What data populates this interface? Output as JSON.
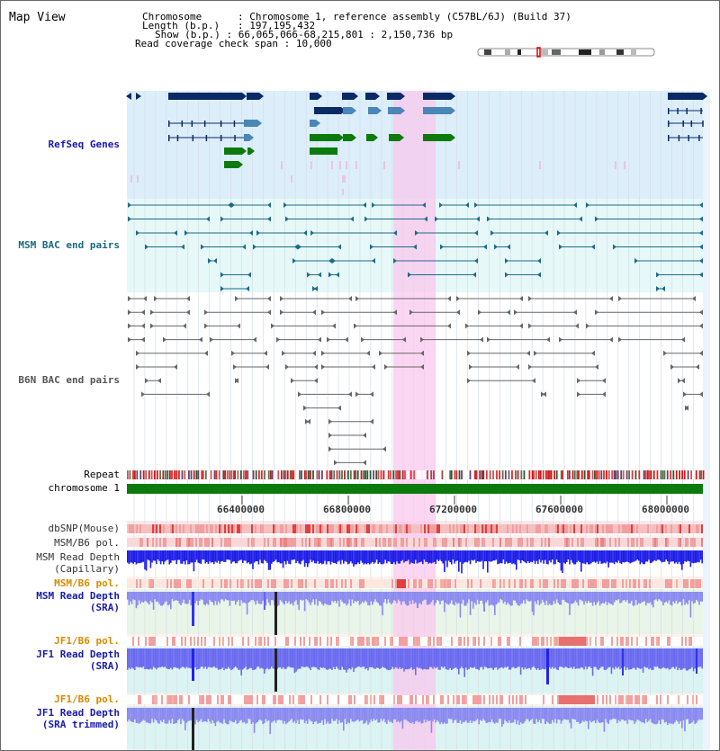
{
  "header": {
    "title": "Map View",
    "chromosome_label": "Chromosome",
    "chromosome_value": "Chromosome 1, reference assembly (C57BL/6J) (Build 37)",
    "length_label": "Length (b.p.)",
    "length_value": "197,195,432",
    "show_label": "Show (b.p.)",
    "show_value": "66,065,066-68,215,801 : 2,150,736 bp",
    "coverage_label": "Read coverage check span",
    "coverage_value": "10,000"
  },
  "tracks": {
    "refseq": "RefSeq Genes",
    "msm_bac": "MSM BAC end pairs",
    "b6n_bac": "B6N BAC end pairs",
    "repeat": "Repeat",
    "chromosome": "chromosome 1",
    "dbsnp": "dbSNP(Mouse)",
    "msm_b6_pol": "MSM/B6 pol.",
    "msm_read_depth_cap_1": "MSM Read Depth",
    "msm_read_depth_cap_2": "(Capillary)",
    "msm_b6_pol_2": "MSM/B6 pol.",
    "msm_read_depth_sra_1": "MSM Read Depth",
    "msm_read_depth_sra_2": "(SRA)",
    "jf1_b6_pol": "JF1/B6 pol.",
    "jf1_read_depth_sra_1": "JF1 Read Depth",
    "jf1_read_depth_sra_2": "(SRA)",
    "jf1_b6_pol_2": "JF1/B6 pol.",
    "jf1_read_depth_trim_1": "JF1 Read Depth",
    "jf1_read_depth_trim_2": "(SRA trimmed)"
  },
  "axis": {
    "ticks": [
      "66400000",
      "66800000",
      "67200000",
      "67600000",
      "68000000"
    ]
  },
  "colors": {
    "refseq_bg": "#dceefa",
    "msm_bg": "#e6f8f8",
    "highlight": "#f9c8ee",
    "gene_dark": "#0a2a66",
    "gene_mid": "#4a86b6",
    "gene_green": "#0c7a0c",
    "msm_line": "#1d6a8a",
    "b6n_line": "#666666",
    "depth_blue": "#2222ee",
    "depth_light": "#8a8af0",
    "label_blue": "#1a1aaa",
    "label_teal": "#1a6a80",
    "label_gray": "#555555",
    "label_orange": "#d88a00"
  }
}
